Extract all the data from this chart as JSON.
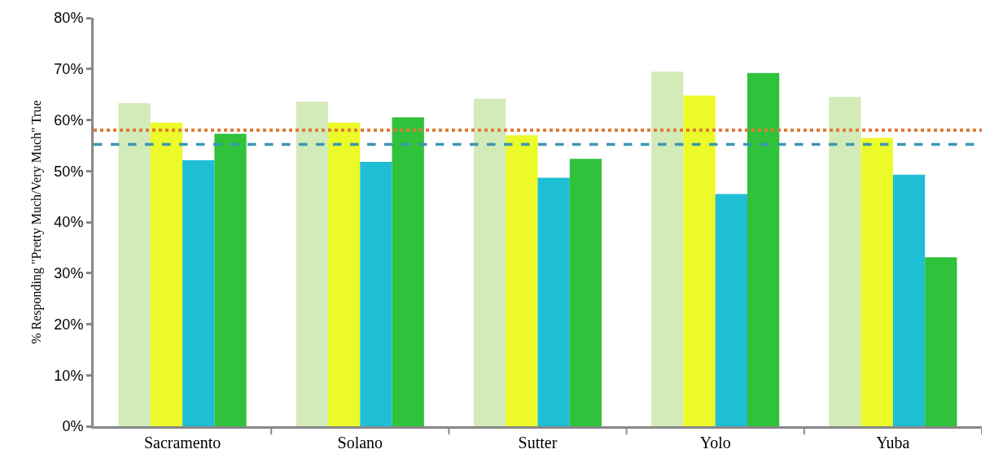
{
  "chart_data": {
    "type": "bar",
    "ylabel": "% Responding \"Pretty Much/Very Much\" True",
    "categories": [
      "Sacramento",
      "Solano",
      "Sutter",
      "Yolo",
      "Yuba"
    ],
    "series": [
      {
        "color": "#d3ebb8",
        "values": [
          63.3,
          63.6,
          64.2,
          69.5,
          64.5
        ]
      },
      {
        "color": "#ebfa28",
        "values": [
          59.5,
          59.5,
          57.0,
          64.8,
          56.5
        ]
      },
      {
        "color": "#1ebed4",
        "values": [
          52.1,
          51.8,
          48.7,
          45.5,
          49.3
        ]
      },
      {
        "color": "#2fc23a",
        "values": [
          57.3,
          60.5,
          52.4,
          69.2,
          33.1
        ]
      }
    ],
    "ylim": [
      0,
      80
    ],
    "yticks": [
      {
        "value": 0,
        "label": "0%"
      },
      {
        "value": 10,
        "label": "10%"
      },
      {
        "value": 20,
        "label": "20%"
      },
      {
        "value": 30,
        "label": "30%"
      },
      {
        "value": 40,
        "label": "40%"
      },
      {
        "value": 50,
        "label": "50%"
      },
      {
        "value": 60,
        "label": "60%"
      },
      {
        "value": 70,
        "label": "70%"
      },
      {
        "value": 80,
        "label": "80%"
      }
    ],
    "ref_lines": [
      {
        "axis": "y",
        "value": 58.0,
        "color": "#e07b39",
        "line_style": "dotted"
      },
      {
        "axis": "y",
        "value": 55.2,
        "color": "#3a97b0",
        "line_style": "dashed"
      }
    ],
    "grid": false
  }
}
